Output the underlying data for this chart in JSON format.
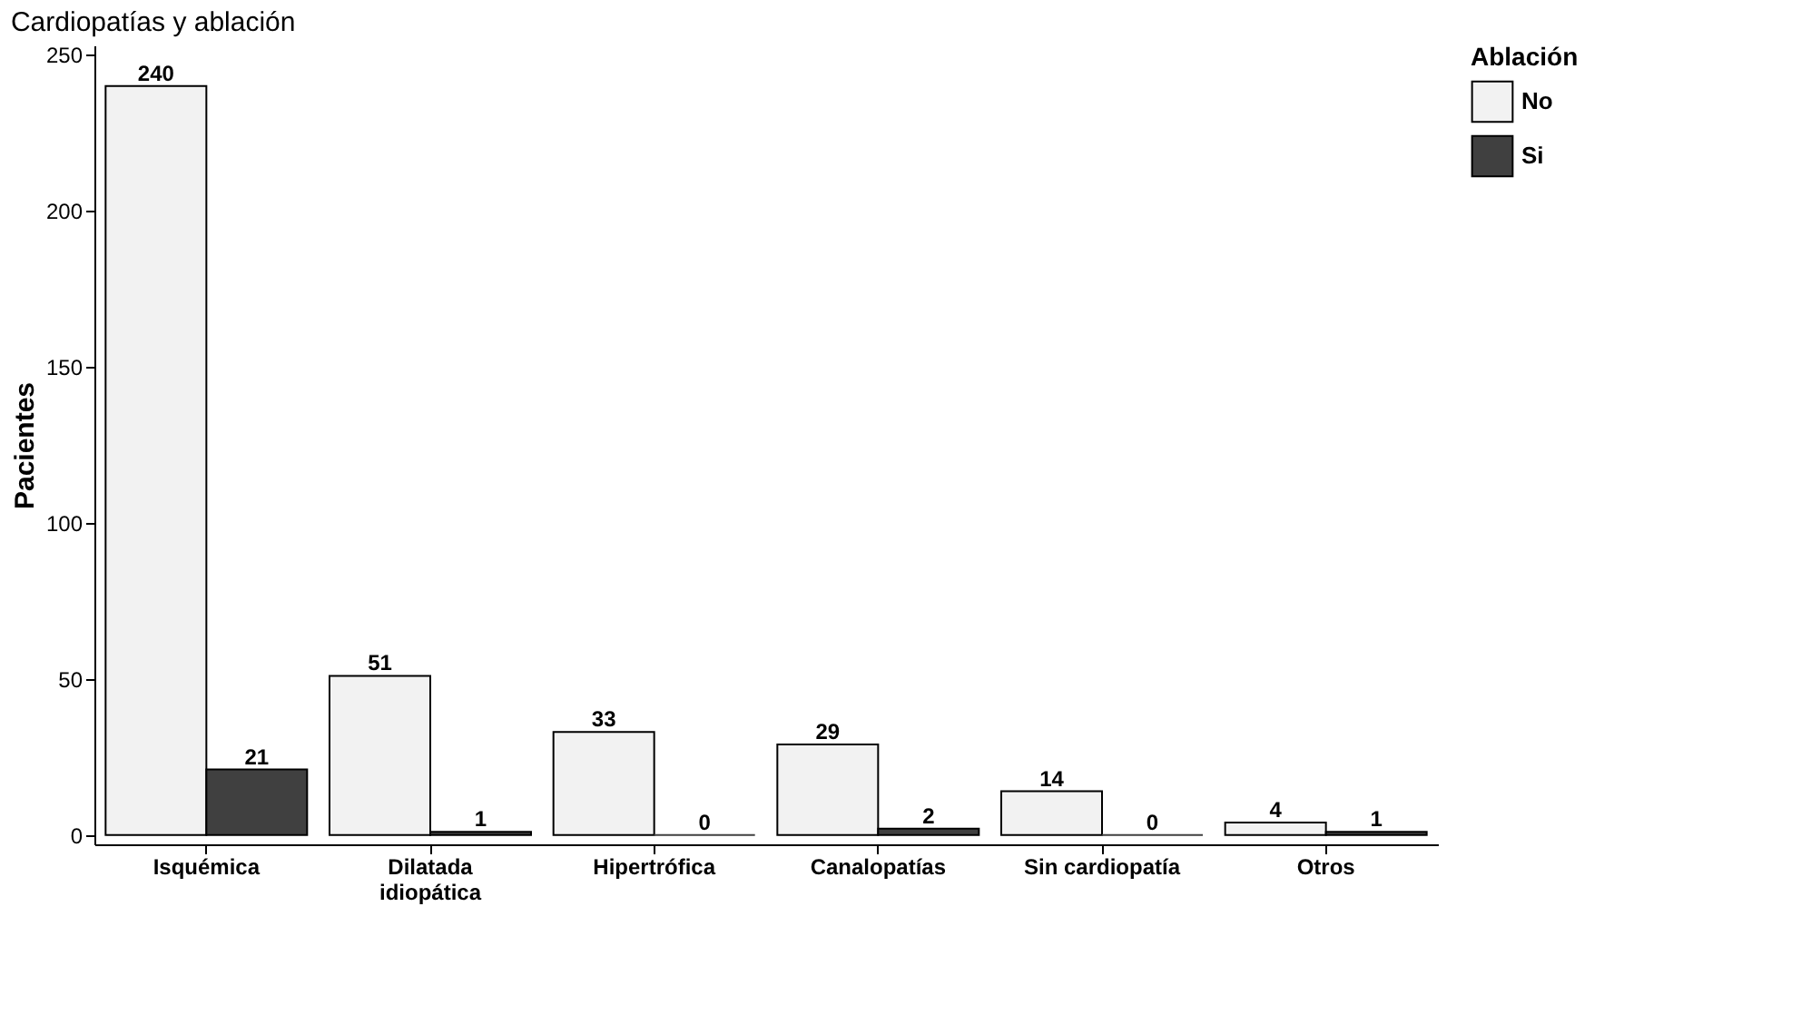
{
  "chart_data": {
    "type": "bar",
    "title": "Cardiopatías y ablación",
    "ylabel": "Pacientes",
    "legend_title": "Ablación",
    "categories": [
      "Isquémica",
      "Dilatada idiopática",
      "Hipertrófica",
      "Canalopatías",
      "Sin cardiopatía",
      "Otros"
    ],
    "series": [
      {
        "name": "No",
        "color": "#f2f2f2",
        "values": [
          240,
          51,
          33,
          29,
          14,
          4
        ]
      },
      {
        "name": "Si",
        "color": "#404040",
        "values": [
          21,
          1,
          0,
          2,
          0,
          1
        ]
      }
    ],
    "ylim": [
      -3,
      253
    ],
    "yticks": [
      0,
      50,
      100,
      150,
      200,
      250
    ],
    "grid": false,
    "legend": "right",
    "data_labels": true
  }
}
